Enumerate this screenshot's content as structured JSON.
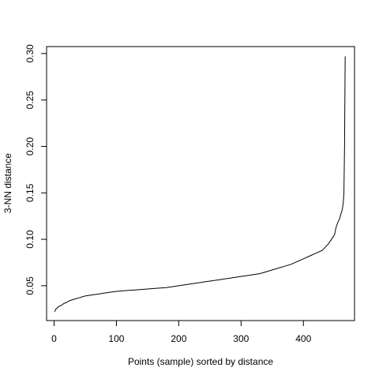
{
  "chart_data": {
    "type": "line",
    "title": "",
    "xlabel": "Points (sample) sorted by distance",
    "ylabel": "3-NN distance",
    "xlim": [
      -12,
      482
    ],
    "ylim": [
      0.0125,
      0.3075
    ],
    "x_ticks": [
      0,
      100,
      200,
      300,
      400
    ],
    "x_tick_labels": [
      "0",
      "100",
      "200",
      "300",
      "400"
    ],
    "y_ticks": [
      0.05,
      0.1,
      0.15,
      0.2,
      0.25,
      0.3
    ],
    "y_tick_labels": [
      "0.05",
      "0.10",
      "0.15",
      "0.20",
      "0.25",
      "0.30"
    ],
    "grid": false,
    "legend": "none",
    "line_color": "#000000",
    "series": [
      {
        "x": [
          1,
          3,
          5,
          8,
          12,
          16,
          20,
          25,
          30,
          35,
          40,
          45,
          50,
          60,
          70,
          80,
          90,
          100,
          120,
          140,
          160,
          180,
          200,
          220,
          240,
          260,
          280,
          300,
          310,
          320,
          330,
          340,
          350,
          360,
          370,
          380,
          390,
          400,
          410,
          420,
          430,
          440,
          445,
          450,
          452,
          455,
          458,
          460,
          462,
          463,
          464,
          465,
          466,
          467
        ],
        "y": [
          0.022,
          0.025,
          0.026,
          0.028,
          0.029,
          0.031,
          0.032,
          0.034,
          0.035,
          0.036,
          0.037,
          0.038,
          0.039,
          0.04,
          0.041,
          0.042,
          0.043,
          0.044,
          0.045,
          0.046,
          0.047,
          0.048,
          0.05,
          0.052,
          0.054,
          0.056,
          0.058,
          0.06,
          0.061,
          0.062,
          0.063,
          0.065,
          0.067,
          0.069,
          0.071,
          0.073,
          0.076,
          0.079,
          0.082,
          0.085,
          0.088,
          0.095,
          0.1,
          0.105,
          0.112,
          0.118,
          0.122,
          0.127,
          0.131,
          0.135,
          0.14,
          0.15,
          0.2,
          0.297
        ]
      }
    ]
  }
}
